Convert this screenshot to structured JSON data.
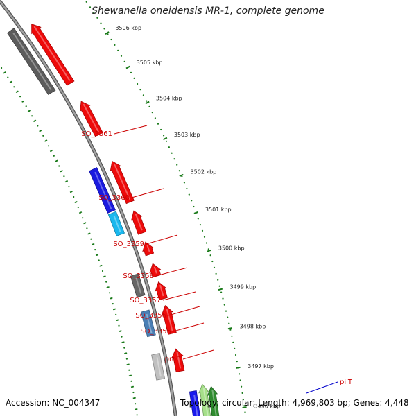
{
  "title": "Shewanella oneidensis MR-1, complete genome",
  "footer": {
    "accession": "Accession: NC_004347",
    "genome_info": "Topology: circular; Length: 4,969,803 bp; Genes: 4,448"
  },
  "colors": {
    "backbone": "#8a8a8a",
    "tick": "#1a7a1a",
    "label_red": "#cc0000",
    "label_blue": "#0000cc"
  },
  "kbp_labels": [
    "3506 kbp",
    "3505 kbp",
    "3504 kbp",
    "3503 kbp",
    "3502 kbp",
    "3501 kbp",
    "3500 kbp",
    "3499 kbp",
    "3498 kbp",
    "3497 kbp",
    "3496 kbp"
  ],
  "gene_labels": [
    "SO_3361",
    "SO_3360",
    "SO_3359",
    "SO_3358",
    "SO_3357",
    "SO_3356",
    "SO_3355",
    "proC",
    "pilT"
  ],
  "genes": [
    {
      "color": "#0a0aee",
      "track": "reverse"
    },
    {
      "color": "#ee0a0a",
      "track": "forward"
    },
    {
      "color": "#5c5c5c",
      "track": "reverse"
    },
    {
      "color": "#ee0a0a",
      "track": "forward"
    },
    {
      "color": "#1a1ae0",
      "track": "reverse"
    },
    {
      "color": "#ee0a0a",
      "track": "forward"
    },
    {
      "color": "#1ab8ee",
      "track": "reverse"
    },
    {
      "color": "#ee0a0a",
      "track": "forward"
    },
    {
      "color": "#ee0a0a",
      "track": "forward"
    },
    {
      "color": "#666666",
      "track": "reverse"
    },
    {
      "color": "#ee0a0a",
      "track": "forward"
    },
    {
      "color": "#ee0a0a",
      "track": "forward"
    },
    {
      "color": "#4a7fb5",
      "track": "reverse"
    },
    {
      "color": "#ee0a0a",
      "track": "forward"
    },
    {
      "color": "#c0c0c0",
      "track": "reverse"
    },
    {
      "color": "#ee0a0a",
      "track": "forward"
    },
    {
      "color": "#1a1aee",
      "track": "reverse"
    },
    {
      "color": "#a6e08a",
      "track": "forward"
    },
    {
      "color": "#2e8b2e",
      "track": "forward"
    }
  ]
}
